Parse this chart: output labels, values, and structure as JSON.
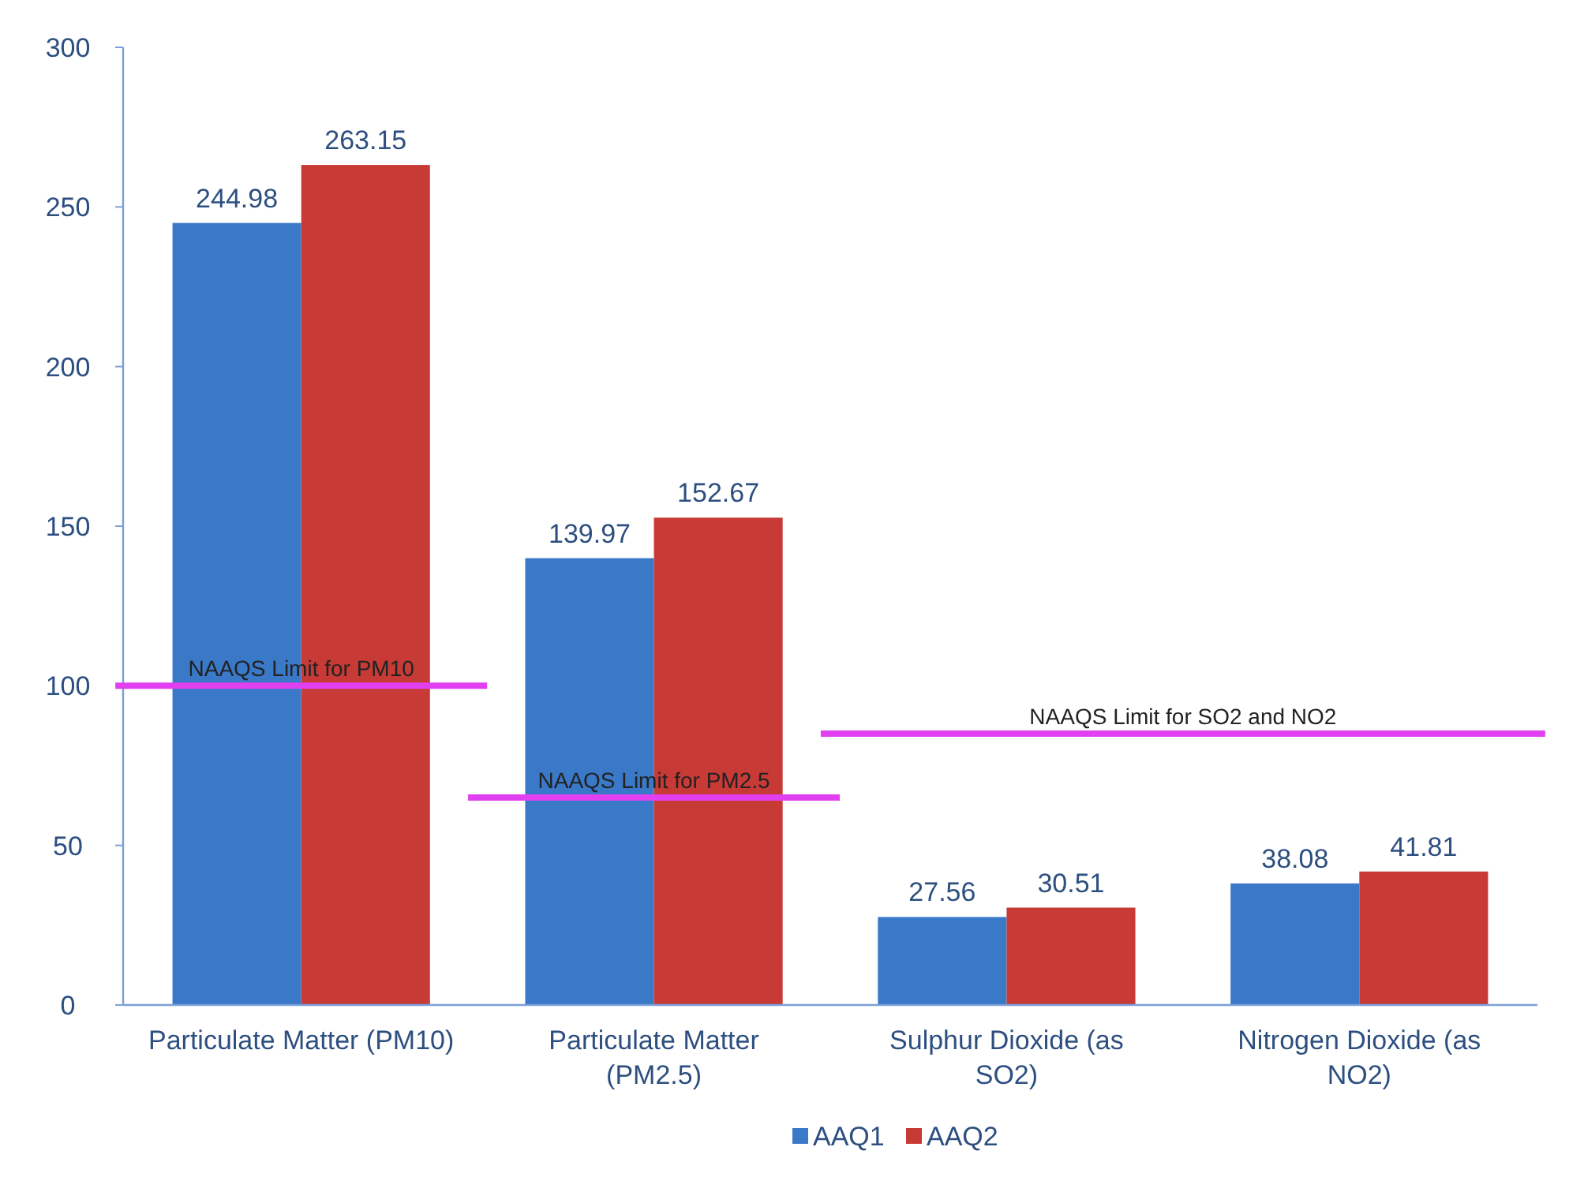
{
  "chart_data": {
    "type": "bar",
    "categories": [
      "Particulate Matter (PM10)",
      "Particulate Matter\n(PM2.5)",
      "Sulphur Dioxide   (as\nSO2)",
      "Nitrogen Dioxide  (as\nNO2)"
    ],
    "series": [
      {
        "name": "AAQ1",
        "color": "#3a78c8",
        "values": [
          244.98,
          139.97,
          27.56,
          38.08
        ]
      },
      {
        "name": "AAQ2",
        "color": "#c73a36",
        "values": [
          263.15,
          152.67,
          30.51,
          41.81
        ]
      }
    ],
    "ylim": [
      0,
      300
    ],
    "yticks": [
      0,
      50,
      100,
      150,
      200,
      250,
      300
    ],
    "data_labels": true,
    "legend": "bottom",
    "grid": false,
    "ref_lines": [
      {
        "axis": "y",
        "value": 100,
        "label": "NAAQS Limit for PM10",
        "color": "#e040f0"
      },
      {
        "axis": "y",
        "value": 65,
        "label": "NAAQS Limit for PM2.5",
        "color": "#e040f0"
      },
      {
        "axis": "y",
        "value": 85,
        "label": "NAAQS Limit for SO2 and NO2",
        "color": "#e040f0"
      }
    ]
  }
}
